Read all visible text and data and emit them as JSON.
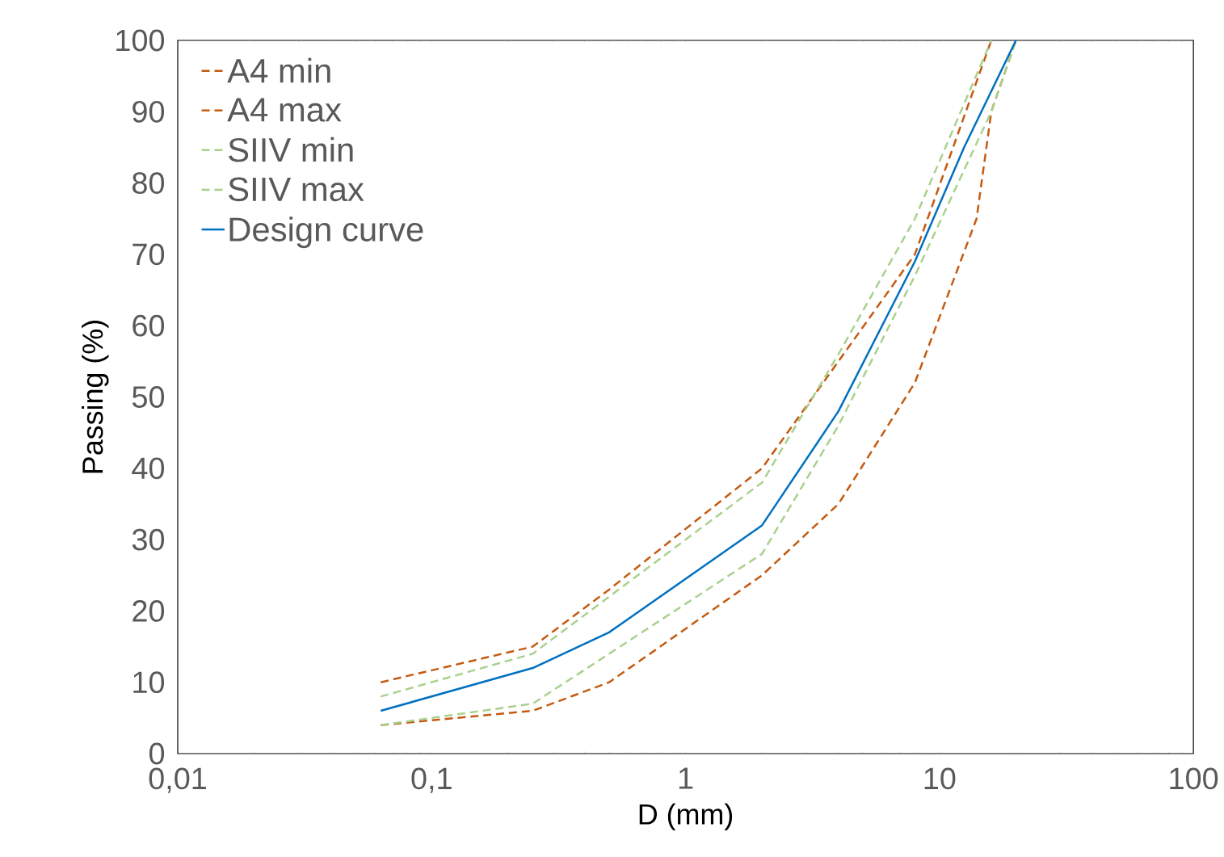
{
  "chart_data": {
    "type": "line",
    "xlabel": "D (mm)",
    "ylabel": "Passing (%)",
    "log": "x",
    "legend": "top left",
    "marker": "none",
    "grid": false,
    "xlim": [
      0.01,
      100
    ],
    "xticks": [
      {
        "value": 0.01,
        "label": "0,01"
      },
      {
        "value": 0.1,
        "label": "0,1"
      },
      1,
      10,
      100
    ],
    "ylim": [
      0,
      100
    ],
    "yticks": [
      0,
      10,
      20,
      30,
      40,
      50,
      60,
      70,
      80,
      90,
      100
    ],
    "series": [
      {
        "name": "A4 min",
        "color": "#c55a11",
        "line_style": "dashed",
        "x": [
          0.063,
          0.25,
          0.5,
          2,
          4,
          8,
          14,
          16,
          20
        ],
        "values": [
          4,
          6,
          10,
          25,
          35,
          52,
          75,
          90,
          100
        ]
      },
      {
        "name": "A4 max",
        "color": "#c55a11",
        "line_style": "dashed",
        "x": [
          0.063,
          0.25,
          0.5,
          2,
          4,
          8,
          16
        ],
        "values": [
          10,
          15,
          23,
          40,
          55,
          70,
          100
        ]
      },
      {
        "name": "SIIV min",
        "color": "#a9d18e",
        "line_style": "dashed",
        "x": [
          0.063,
          0.25,
          0.5,
          2,
          4,
          8,
          16,
          20
        ],
        "values": [
          4,
          7,
          14,
          28,
          46,
          67,
          90,
          100
        ]
      },
      {
        "name": "SIIV max",
        "color": "#a9d18e",
        "line_style": "dashed",
        "x": [
          0.063,
          0.25,
          0.5,
          2,
          4,
          8,
          16
        ],
        "values": [
          8,
          14,
          22,
          38,
          56,
          75,
          100
        ]
      },
      {
        "name": "Design curve",
        "color": "#0070c0",
        "line_style": "solid",
        "x": [
          0.063,
          0.25,
          0.5,
          2,
          4,
          8,
          12.5,
          20
        ],
        "values": [
          6,
          12,
          17,
          32,
          48,
          69,
          85,
          100
        ]
      }
    ]
  }
}
